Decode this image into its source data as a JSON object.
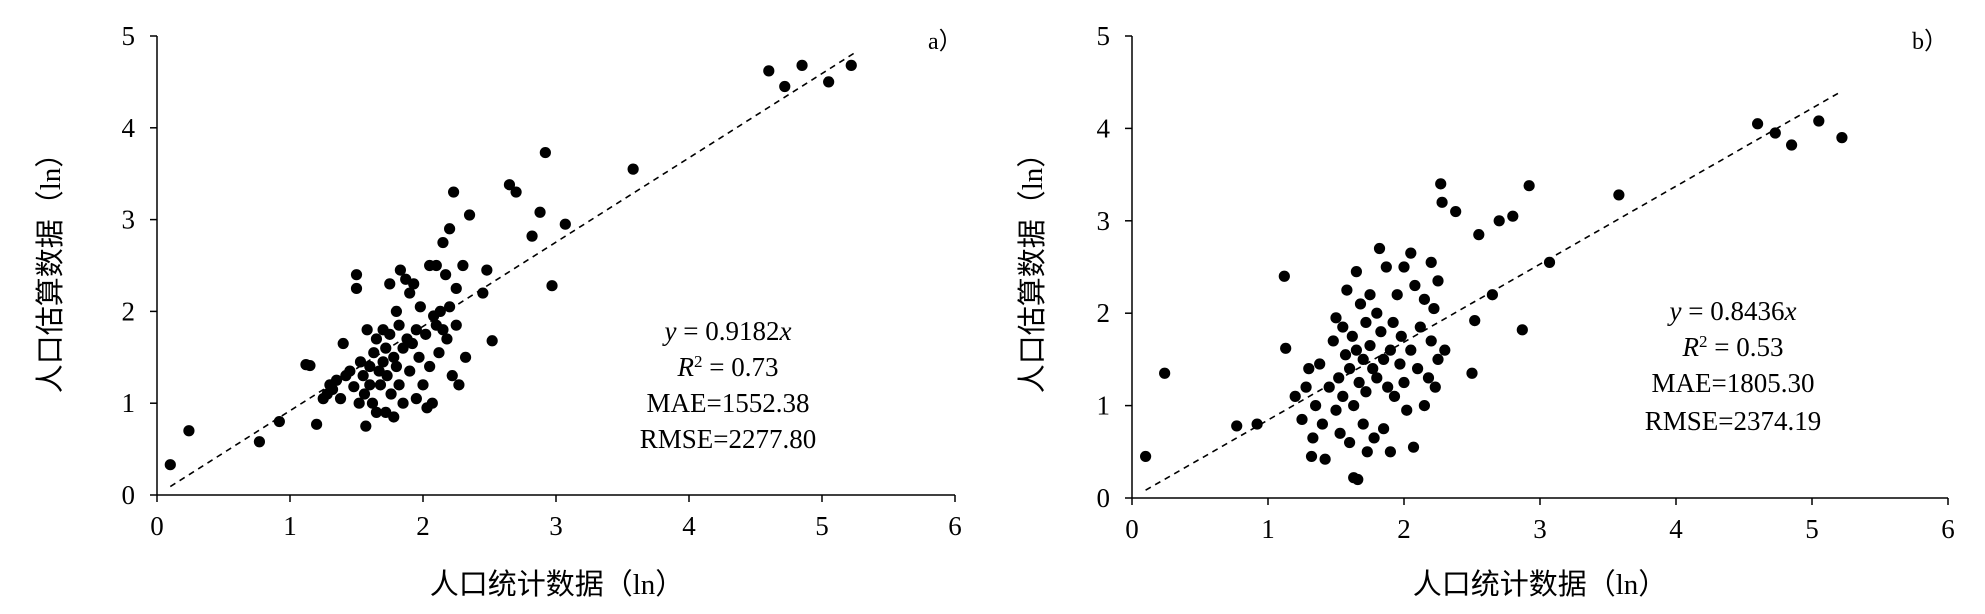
{
  "chart_data": [
    {
      "panel_label": "a）",
      "type": "scatter",
      "xlabel": "人口统计数据（ln）",
      "ylabel": "人口估算数据（ln）",
      "xlim": [
        0,
        6
      ],
      "ylim": [
        0,
        5
      ],
      "x_ticks": [
        "0",
        "1",
        "2",
        "3",
        "4",
        "5",
        "6"
      ],
      "y_ticks": [
        "0",
        "1",
        "2",
        "3",
        "4",
        "5"
      ],
      "fit": {
        "slope": 0.9182,
        "x_range": [
          0.1,
          5.25
        ],
        "style": "dashed"
      },
      "annotation": {
        "equation": [
          "y",
          " = 0.9182",
          "x"
        ],
        "r2": [
          "R",
          "2",
          " = 0.73"
        ],
        "mae": "MAE=1552.38",
        "rmse": "RMSE=2277.80"
      },
      "points": [
        [
          0.1,
          0.33
        ],
        [
          0.24,
          0.7
        ],
        [
          0.77,
          0.58
        ],
        [
          0.92,
          0.8
        ],
        [
          1.12,
          1.42
        ],
        [
          1.15,
          1.41
        ],
        [
          1.2,
          0.77
        ],
        [
          1.25,
          1.05
        ],
        [
          1.28,
          1.1
        ],
        [
          1.3,
          1.2
        ],
        [
          1.32,
          1.15
        ],
        [
          1.35,
          1.25
        ],
        [
          1.38,
          1.05
        ],
        [
          1.4,
          1.65
        ],
        [
          1.42,
          1.3
        ],
        [
          1.45,
          1.35
        ],
        [
          1.48,
          1.18
        ],
        [
          1.5,
          2.4
        ],
        [
          1.5,
          2.25
        ],
        [
          1.52,
          1.0
        ],
        [
          1.53,
          1.45
        ],
        [
          1.55,
          1.3
        ],
        [
          1.56,
          1.1
        ],
        [
          1.57,
          0.75
        ],
        [
          1.58,
          1.8
        ],
        [
          1.6,
          1.4
        ],
        [
          1.6,
          1.2
        ],
        [
          1.62,
          1.0
        ],
        [
          1.63,
          1.55
        ],
        [
          1.65,
          1.7
        ],
        [
          1.65,
          0.9
        ],
        [
          1.67,
          1.35
        ],
        [
          1.68,
          1.2
        ],
        [
          1.7,
          1.8
        ],
        [
          1.7,
          1.45
        ],
        [
          1.72,
          1.6
        ],
        [
          1.72,
          0.9
        ],
        [
          1.73,
          1.3
        ],
        [
          1.75,
          2.3
        ],
        [
          1.75,
          1.75
        ],
        [
          1.76,
          1.1
        ],
        [
          1.78,
          1.5
        ],
        [
          1.78,
          0.85
        ],
        [
          1.8,
          2.0
        ],
        [
          1.8,
          1.4
        ],
        [
          1.82,
          1.85
        ],
        [
          1.82,
          1.2
        ],
        [
          1.83,
          2.45
        ],
        [
          1.85,
          1.6
        ],
        [
          1.85,
          1.0
        ],
        [
          1.87,
          2.35
        ],
        [
          1.88,
          1.7
        ],
        [
          1.9,
          2.2
        ],
        [
          1.9,
          1.35
        ],
        [
          1.92,
          1.65
        ],
        [
          1.93,
          2.3
        ],
        [
          1.95,
          1.8
        ],
        [
          1.95,
          1.05
        ],
        [
          1.97,
          1.5
        ],
        [
          1.98,
          2.05
        ],
        [
          2.0,
          1.2
        ],
        [
          2.02,
          1.75
        ],
        [
          2.03,
          0.95
        ],
        [
          2.05,
          2.5
        ],
        [
          2.05,
          1.4
        ],
        [
          2.07,
          1.0
        ],
        [
          2.08,
          1.95
        ],
        [
          2.1,
          2.5
        ],
        [
          2.1,
          1.85
        ],
        [
          2.12,
          1.55
        ],
        [
          2.13,
          2.0
        ],
        [
          2.15,
          2.75
        ],
        [
          2.15,
          1.8
        ],
        [
          2.17,
          2.4
        ],
        [
          2.18,
          1.7
        ],
        [
          2.2,
          2.9
        ],
        [
          2.2,
          2.05
        ],
        [
          2.22,
          1.3
        ],
        [
          2.23,
          3.3
        ],
        [
          2.25,
          2.25
        ],
        [
          2.25,
          1.85
        ],
        [
          2.27,
          1.2
        ],
        [
          2.3,
          2.5
        ],
        [
          2.32,
          1.5
        ],
        [
          2.35,
          3.05
        ],
        [
          2.45,
          2.2
        ],
        [
          2.48,
          2.45
        ],
        [
          2.52,
          1.68
        ],
        [
          2.65,
          3.38
        ],
        [
          2.7,
          3.3
        ],
        [
          2.82,
          2.82
        ],
        [
          2.88,
          3.08
        ],
        [
          2.92,
          3.73
        ],
        [
          2.97,
          2.28
        ],
        [
          3.07,
          2.95
        ],
        [
          3.58,
          3.55
        ],
        [
          4.6,
          4.62
        ],
        [
          4.72,
          4.45
        ],
        [
          4.85,
          4.68
        ],
        [
          5.05,
          4.5
        ],
        [
          5.22,
          4.68
        ]
      ]
    },
    {
      "panel_label": "b）",
      "type": "scatter",
      "xlabel": "人口统计数据（ln）",
      "ylabel": "人口估算数据（ln）",
      "xlim": [
        0,
        6
      ],
      "ylim": [
        0,
        5
      ],
      "x_ticks": [
        "0",
        "1",
        "2",
        "3",
        "4",
        "5",
        "6"
      ],
      "y_ticks": [
        "0",
        "1",
        "2",
        "3",
        "4",
        "5"
      ],
      "fit": {
        "slope": 0.8436,
        "x_range": [
          0.1,
          5.2
        ],
        "style": "dashed"
      },
      "annotation": {
        "equation": [
          "y",
          " = 0.8436",
          "x"
        ],
        "r2": [
          "R",
          "2",
          " = 0.53"
        ],
        "mae": "MAE=1805.30",
        "rmse": "RMSE=2374.19"
      },
      "points": [
        [
          0.1,
          0.45
        ],
        [
          0.24,
          1.35
        ],
        [
          0.77,
          0.78
        ],
        [
          0.92,
          0.8
        ],
        [
          1.12,
          2.4
        ],
        [
          1.13,
          1.62
        ],
        [
          1.2,
          1.1
        ],
        [
          1.25,
          0.85
        ],
        [
          1.28,
          1.2
        ],
        [
          1.3,
          1.4
        ],
        [
          1.32,
          0.45
        ],
        [
          1.33,
          0.65
        ],
        [
          1.35,
          1.0
        ],
        [
          1.38,
          1.45
        ],
        [
          1.4,
          0.8
        ],
        [
          1.42,
          0.42
        ],
        [
          1.45,
          1.2
        ],
        [
          1.48,
          1.7
        ],
        [
          1.5,
          1.95
        ],
        [
          1.5,
          0.95
        ],
        [
          1.52,
          1.3
        ],
        [
          1.53,
          0.7
        ],
        [
          1.55,
          1.85
        ],
        [
          1.55,
          1.1
        ],
        [
          1.57,
          1.55
        ],
        [
          1.58,
          2.25
        ],
        [
          1.6,
          1.4
        ],
        [
          1.6,
          0.6
        ],
        [
          1.62,
          1.75
        ],
        [
          1.63,
          1.0
        ],
        [
          1.63,
          0.22
        ],
        [
          1.65,
          2.45
        ],
        [
          1.65,
          1.6
        ],
        [
          1.66,
          0.2
        ],
        [
          1.67,
          1.25
        ],
        [
          1.68,
          2.1
        ],
        [
          1.7,
          1.5
        ],
        [
          1.7,
          0.8
        ],
        [
          1.72,
          1.9
        ],
        [
          1.72,
          1.15
        ],
        [
          1.73,
          0.5
        ],
        [
          1.75,
          2.2
        ],
        [
          1.75,
          1.65
        ],
        [
          1.77,
          1.4
        ],
        [
          1.78,
          0.65
        ],
        [
          1.8,
          2.0
        ],
        [
          1.8,
          1.3
        ],
        [
          1.82,
          2.7
        ],
        [
          1.83,
          1.8
        ],
        [
          1.85,
          1.5
        ],
        [
          1.85,
          0.75
        ],
        [
          1.87,
          2.5
        ],
        [
          1.88,
          1.2
        ],
        [
          1.9,
          1.6
        ],
        [
          1.9,
          0.5
        ],
        [
          1.92,
          1.9
        ],
        [
          1.93,
          1.1
        ],
        [
          1.95,
          2.2
        ],
        [
          1.97,
          1.45
        ],
        [
          1.98,
          1.75
        ],
        [
          2.0,
          2.5
        ],
        [
          2.0,
          1.25
        ],
        [
          2.02,
          0.95
        ],
        [
          2.05,
          2.65
        ],
        [
          2.05,
          1.6
        ],
        [
          2.07,
          0.55
        ],
        [
          2.08,
          2.3
        ],
        [
          2.1,
          1.4
        ],
        [
          2.12,
          1.85
        ],
        [
          2.15,
          2.15
        ],
        [
          2.15,
          1.0
        ],
        [
          2.18,
          1.3
        ],
        [
          2.2,
          2.55
        ],
        [
          2.2,
          1.7
        ],
        [
          2.22,
          2.05
        ],
        [
          2.23,
          1.2
        ],
        [
          2.25,
          2.35
        ],
        [
          2.25,
          1.5
        ],
        [
          2.27,
          3.4
        ],
        [
          2.28,
          3.2
        ],
        [
          2.3,
          1.6
        ],
        [
          2.38,
          3.1
        ],
        [
          2.5,
          1.35
        ],
        [
          2.52,
          1.92
        ],
        [
          2.55,
          2.85
        ],
        [
          2.65,
          2.2
        ],
        [
          2.7,
          3.0
        ],
        [
          2.8,
          3.05
        ],
        [
          2.87,
          1.82
        ],
        [
          2.92,
          3.38
        ],
        [
          3.07,
          2.55
        ],
        [
          3.58,
          3.28
        ],
        [
          4.6,
          4.05
        ],
        [
          4.73,
          3.95
        ],
        [
          4.85,
          3.82
        ],
        [
          5.05,
          4.08
        ],
        [
          5.22,
          3.9
        ]
      ]
    }
  ]
}
